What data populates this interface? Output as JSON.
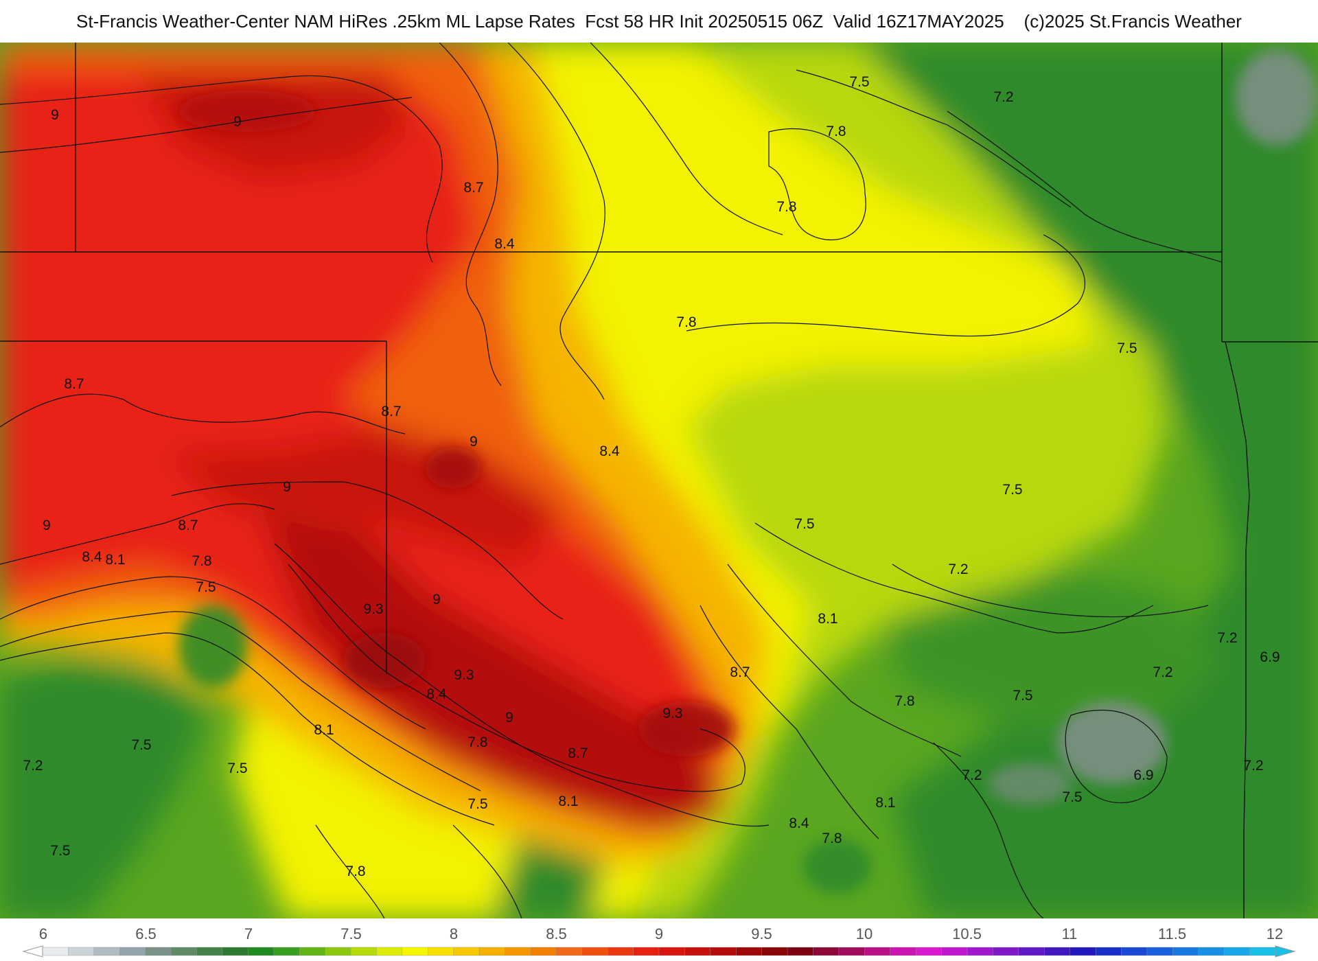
{
  "title": "St-Francis Weather-Center NAM HiRes .25km ML Lapse Rates  Fcst 58 HR Init 20250515 06Z  Valid 16Z17MAY2025    (c)2025 St.Francis Weather",
  "colors": {
    "v6_9": "#7f8f86",
    "v7_2": "#2f8a2a",
    "v7_5": "#5aa620",
    "v7_8": "#b8d80a",
    "v8_1": "#f3f200",
    "v8_4": "#f5b400",
    "v8_7": "#f06010",
    "v9_0": "#e82016",
    "v9_3": "#b40e0c"
  },
  "contour_labels": [
    "9",
    "9",
    "8.7",
    "8.4",
    "7.5",
    "7.2",
    "7.8",
    "7.8",
    "7.8",
    "7.5",
    "8.7",
    "8.7",
    "9",
    "8.4",
    "9",
    "9",
    "8.7",
    "8.4",
    "8.1",
    "7.8",
    "7.5",
    "9.3",
    "9",
    "9.3",
    "8.4",
    "9",
    "9.3",
    "8.7",
    "8.1",
    "8.7",
    "7.8",
    "8.1",
    "7.5",
    "7.2",
    "7.5",
    "7.2",
    "7.2",
    "6.9",
    "7.2",
    "7.2",
    "7.5",
    "6.9",
    "7.5",
    "8.1",
    "8.4",
    "7.8",
    "7.5",
    "7.2",
    "7.5",
    "7.5",
    "8.1",
    "7.8",
    "7.5",
    "7.8"
  ],
  "colorbar": {
    "ticks": [
      "6",
      "6.5",
      "7",
      "7.5",
      "8",
      "8.5",
      "9",
      "9.5",
      "10",
      "10.5",
      "11",
      "11.5",
      "12"
    ],
    "swatches": [
      "#e8ecee",
      "#ccd4d8",
      "#b0bcc2",
      "#93a4ac",
      "#7a9288",
      "#5e8a66",
      "#44824a",
      "#2c7a30",
      "#1f8a1f",
      "#38a020",
      "#62b416",
      "#8cc80e",
      "#b4da08",
      "#dcec04",
      "#f6f600",
      "#f8e000",
      "#f8c800",
      "#f6b000",
      "#f49800",
      "#f28000",
      "#f06818",
      "#ee5010",
      "#ea3810",
      "#e82010",
      "#d8160e",
      "#c8100c",
      "#b40c0c",
      "#9e0808",
      "#880606",
      "#7a0414",
      "#8c0838",
      "#a00c5c",
      "#b81086",
      "#cc14b0",
      "#d818cc",
      "#c018d0",
      "#a018cc",
      "#8018c8",
      "#6018c4",
      "#4018c0",
      "#2018bc",
      "#1830c8",
      "#1848d4",
      "#1860dc",
      "#1878e0",
      "#1890e4",
      "#18a8e8",
      "#18c0e8"
    ]
  }
}
